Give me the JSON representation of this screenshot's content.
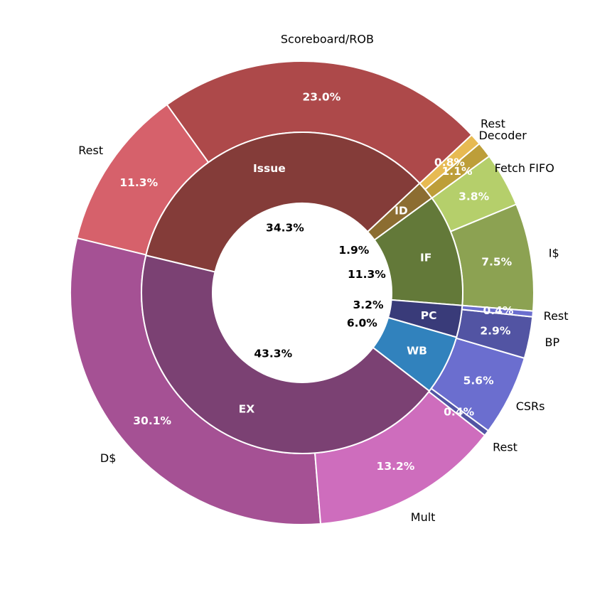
{
  "chart_data": {
    "type": "pie",
    "subtype": "nested-donut",
    "inner": [
      {
        "label": "IF",
        "value": 11.3,
        "pct_label": "11.3%",
        "color": "#637939"
      },
      {
        "label": "ID",
        "value": 1.9,
        "pct_label": "1.9%",
        "color": "#8c6d31"
      },
      {
        "label": "Issue",
        "value": 34.3,
        "pct_label": "34.3%",
        "color": "#843c39"
      },
      {
        "label": "EX",
        "value": 43.3,
        "pct_label": "43.3%",
        "color": "#7b4173"
      },
      {
        "label": "WB",
        "value": 6.0,
        "pct_label": "6.0%",
        "color": "#3182bd"
      },
      {
        "label": "PC",
        "value": 3.2,
        "pct_label": "3.2%",
        "color": "#393b79"
      }
    ],
    "outer": [
      {
        "label": "I$",
        "value": 7.5,
        "pct_label": "7.5%",
        "color": "#8ca252"
      },
      {
        "label": "Fetch FIFO",
        "value": 3.8,
        "pct_label": "3.8%",
        "color": "#b5cf6b"
      },
      {
        "label": "Decoder",
        "value": 1.1,
        "pct_label": "1.1%",
        "color": "#bd9e39"
      },
      {
        "label": "Rest",
        "value": 0.8,
        "pct_label": "0.8%",
        "color": "#e7ba52"
      },
      {
        "label": "Scoreboard/ROB",
        "value": 23.0,
        "pct_label": "23.0%",
        "color": "#ad494a"
      },
      {
        "label": "Rest",
        "value": 11.3,
        "pct_label": "11.3%",
        "color": "#d6616b"
      },
      {
        "label": "D$",
        "value": 30.1,
        "pct_label": "30.1%",
        "color": "#a55194"
      },
      {
        "label": "Mult",
        "value": 13.2,
        "pct_label": "13.2%",
        "color": "#ce6dbd"
      },
      {
        "label": "Rest",
        "value": 0.4,
        "pct_label": "0.4%",
        "color": "#5254a3"
      },
      {
        "label": "CSRs",
        "value": 5.6,
        "pct_label": "5.6%",
        "color": "#6b6ecf"
      },
      {
        "label": "BP",
        "value": 2.9,
        "pct_label": "2.9%",
        "color": "#5254a3"
      },
      {
        "label": "Rest",
        "value": 0.4,
        "pct_label": "0.4%",
        "color": "#6b6ecf"
      }
    ],
    "legend": "none",
    "grid": false
  }
}
